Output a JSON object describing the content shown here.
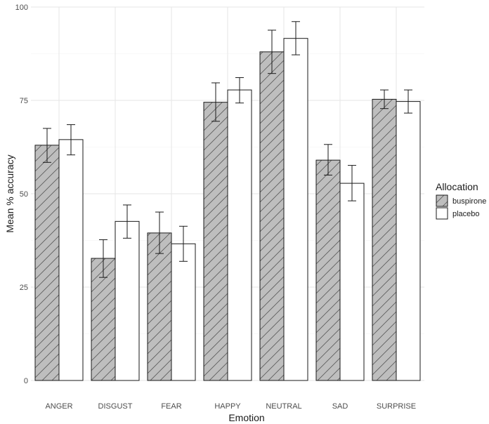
{
  "chart_data": {
    "type": "bar",
    "title": "",
    "xlabel": "Emotion",
    "ylabel": "Mean % accuracy",
    "ylim": [
      0,
      100
    ],
    "yticks": [
      0,
      25,
      50,
      75,
      100
    ],
    "grid": true,
    "legend": {
      "title": "Allocation",
      "position": "right"
    },
    "categories": [
      "ANGER",
      "DISGUST",
      "FEAR",
      "HAPPY",
      "NEUTRAL",
      "SAD",
      "SURPRISE"
    ],
    "series": [
      {
        "name": "buspirone",
        "fill": "#bebebe",
        "pattern": "hatch",
        "values": [
          63.0,
          32.7,
          39.5,
          74.5,
          88.0,
          59.0,
          75.3
        ],
        "err_low": [
          58.4,
          27.6,
          34.0,
          69.4,
          82.2,
          55.0,
          72.8
        ],
        "err_high": [
          67.5,
          37.7,
          45.1,
          79.7,
          93.8,
          63.2,
          77.8
        ]
      },
      {
        "name": "placebo",
        "fill": "#ffffff",
        "pattern": "none",
        "values": [
          64.5,
          42.6,
          36.6,
          77.8,
          91.6,
          52.8,
          74.7
        ],
        "err_low": [
          60.4,
          38.1,
          31.9,
          74.3,
          87.2,
          48.1,
          71.6
        ],
        "err_high": [
          68.5,
          47.0,
          41.3,
          81.1,
          96.1,
          57.6,
          77.8
        ]
      }
    ]
  }
}
